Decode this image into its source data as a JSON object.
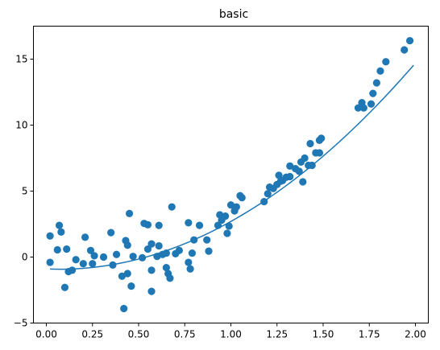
{
  "chart_data": {
    "type": "scatter",
    "title": "basic",
    "xlabel": "",
    "ylabel": "",
    "xlim": [
      -0.07,
      2.07
    ],
    "ylim": [
      -5,
      17.5
    ],
    "xticks": [
      0.0,
      0.25,
      0.5,
      0.75,
      1.0,
      1.25,
      1.5,
      1.75,
      2.0
    ],
    "xtick_labels": [
      "0.00",
      "0.25",
      "0.50",
      "0.75",
      "1.00",
      "1.25",
      "1.50",
      "1.75",
      "2.00"
    ],
    "yticks": [
      -5,
      0,
      5,
      10,
      15
    ],
    "ytick_labels": [
      "−5",
      "0",
      "5",
      "10",
      "15"
    ],
    "grid": false,
    "color": "#1f77b4",
    "series": [
      {
        "type": "scatter",
        "points": [
          [
            0.02,
            1.6
          ],
          [
            0.02,
            -0.4
          ],
          [
            0.06,
            0.55
          ],
          [
            0.07,
            2.4
          ],
          [
            0.08,
            1.9
          ],
          [
            0.1,
            -2.3
          ],
          [
            0.11,
            0.6
          ],
          [
            0.12,
            -1.1
          ],
          [
            0.14,
            -1.0
          ],
          [
            0.16,
            -0.2
          ],
          [
            0.2,
            -0.5
          ],
          [
            0.21,
            1.5
          ],
          [
            0.24,
            0.5
          ],
          [
            0.25,
            -0.5
          ],
          [
            0.26,
            0.1
          ],
          [
            0.31,
            0.0
          ],
          [
            0.35,
            1.85
          ],
          [
            0.36,
            -0.6
          ],
          [
            0.38,
            0.2
          ],
          [
            0.41,
            -1.45
          ],
          [
            0.42,
            -3.9
          ],
          [
            0.43,
            1.25
          ],
          [
            0.44,
            0.9
          ],
          [
            0.44,
            -1.25
          ],
          [
            0.45,
            3.3
          ],
          [
            0.46,
            -2.2
          ],
          [
            0.47,
            0.05
          ],
          [
            0.52,
            -0.05
          ],
          [
            0.53,
            2.55
          ],
          [
            0.55,
            2.45
          ],
          [
            0.55,
            0.6
          ],
          [
            0.57,
            -2.6
          ],
          [
            0.57,
            1.0
          ],
          [
            0.57,
            -1.0
          ],
          [
            0.6,
            0.05
          ],
          [
            0.61,
            2.4
          ],
          [
            0.61,
            0.85
          ],
          [
            0.63,
            0.2
          ],
          [
            0.65,
            0.3
          ],
          [
            0.65,
            -0.8
          ],
          [
            0.66,
            -1.25
          ],
          [
            0.67,
            -1.6
          ],
          [
            0.68,
            3.8
          ],
          [
            0.7,
            0.25
          ],
          [
            0.72,
            0.5
          ],
          [
            0.77,
            2.6
          ],
          [
            0.77,
            -0.4
          ],
          [
            0.78,
            -0.9
          ],
          [
            0.79,
            0.3
          ],
          [
            0.8,
            1.3
          ],
          [
            0.83,
            2.4
          ],
          [
            0.87,
            1.3
          ],
          [
            0.88,
            0.45
          ],
          [
            0.93,
            2.4
          ],
          [
            0.94,
            3.2
          ],
          [
            0.95,
            2.8
          ],
          [
            0.97,
            3.1
          ],
          [
            0.98,
            1.8
          ],
          [
            0.99,
            2.35
          ],
          [
            1.0,
            3.95
          ],
          [
            1.02,
            3.5
          ],
          [
            1.03,
            3.8
          ],
          [
            1.05,
            4.65
          ],
          [
            1.06,
            4.5
          ],
          [
            1.18,
            4.2
          ],
          [
            1.2,
            4.8
          ],
          [
            1.21,
            5.3
          ],
          [
            1.23,
            5.2
          ],
          [
            1.25,
            5.5
          ],
          [
            1.26,
            6.2
          ],
          [
            1.27,
            5.75
          ],
          [
            1.28,
            5.8
          ],
          [
            1.3,
            6.05
          ],
          [
            1.32,
            6.1
          ],
          [
            1.32,
            6.9
          ],
          [
            1.35,
            6.7
          ],
          [
            1.37,
            6.5
          ],
          [
            1.38,
            7.2
          ],
          [
            1.39,
            5.7
          ],
          [
            1.4,
            7.5
          ],
          [
            1.42,
            6.95
          ],
          [
            1.43,
            8.6
          ],
          [
            1.44,
            6.95
          ],
          [
            1.46,
            7.9
          ],
          [
            1.48,
            7.9
          ],
          [
            1.48,
            8.85
          ],
          [
            1.49,
            9.0
          ],
          [
            1.69,
            11.3
          ],
          [
            1.71,
            11.7
          ],
          [
            1.72,
            11.3
          ],
          [
            1.76,
            11.6
          ],
          [
            1.77,
            12.4
          ],
          [
            1.79,
            13.2
          ],
          [
            1.81,
            14.1
          ],
          [
            1.84,
            14.8
          ],
          [
            1.94,
            15.7
          ],
          [
            1.97,
            16.4
          ]
        ]
      },
      {
        "type": "line",
        "fit": {
          "a": 4.2,
          "b": -0.6,
          "c": -0.9,
          "x_range": [
            0.02,
            1.99
          ]
        }
      }
    ]
  }
}
